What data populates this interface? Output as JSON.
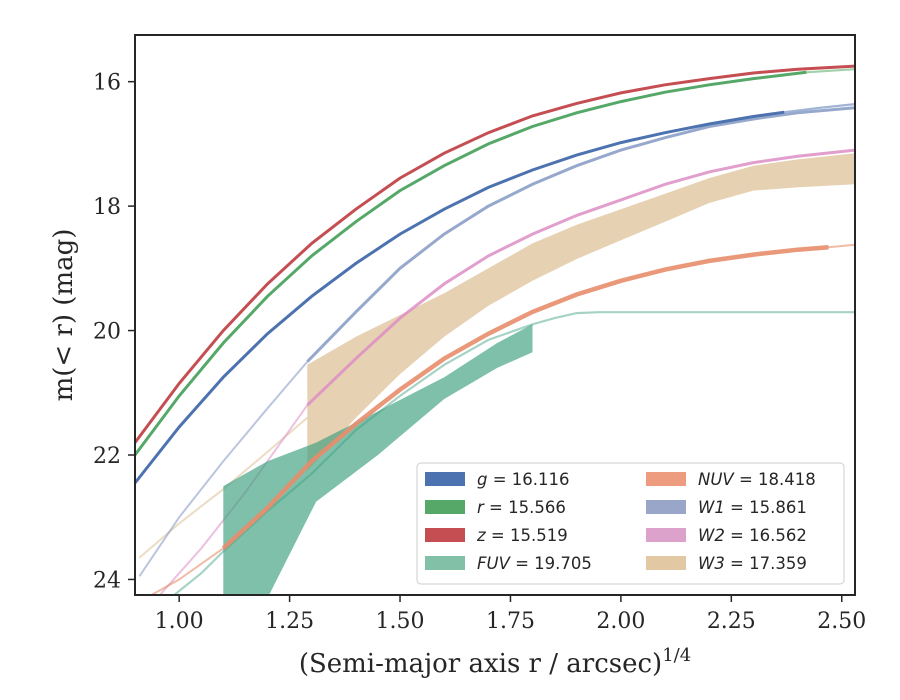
{
  "chart_data": {
    "type": "line",
    "xlabel": "(Semi-major axis r / arcsec)",
    "xlabel_sup": "1/4",
    "ylabel": "m(< r) (mag)",
    "xlim": [
      0.9,
      2.53
    ],
    "ylim": [
      24.25,
      15.25
    ],
    "y_inverted": true,
    "xticks": [
      "1.00",
      "1.25",
      "1.50",
      "1.75",
      "2.00",
      "2.25",
      "2.50"
    ],
    "yticks": [
      "16",
      "18",
      "20",
      "22",
      "24"
    ],
    "grid": false,
    "legend_position": "lower-right",
    "series": [
      {
        "name": "g = 16.116",
        "band": "g",
        "label_value": "16.116",
        "color": "#4c72b0",
        "x": [
          0.9,
          1.0,
          1.1,
          1.2,
          1.3,
          1.4,
          1.5,
          1.6,
          1.7,
          1.8,
          1.9,
          2.0,
          2.1,
          2.2,
          2.3,
          2.37
        ],
        "y": [
          22.45,
          21.55,
          20.75,
          20.05,
          19.45,
          18.92,
          18.45,
          18.05,
          17.7,
          17.42,
          17.18,
          16.98,
          16.82,
          16.68,
          16.56,
          16.49
        ],
        "x_ext": [
          2.37,
          2.45,
          2.53
        ],
        "y_ext": [
          16.49,
          16.42,
          16.36
        ]
      },
      {
        "name": "r = 15.566",
        "band": "r",
        "label_value": "15.566",
        "color": "#55a868",
        "x": [
          0.9,
          1.0,
          1.1,
          1.2,
          1.3,
          1.4,
          1.5,
          1.6,
          1.7,
          1.8,
          1.9,
          2.0,
          2.1,
          2.2,
          2.3,
          2.42
        ],
        "y": [
          22.0,
          21.05,
          20.2,
          19.45,
          18.8,
          18.25,
          17.75,
          17.35,
          17.0,
          16.72,
          16.5,
          16.32,
          16.17,
          16.05,
          15.95,
          15.85
        ],
        "x_ext": [
          2.42,
          2.53
        ],
        "y_ext": [
          15.85,
          15.8
        ]
      },
      {
        "name": "z = 15.519",
        "band": "z",
        "label_value": "15.519",
        "color": "#c44e52",
        "x": [
          0.9,
          1.0,
          1.1,
          1.2,
          1.3,
          1.4,
          1.5,
          1.6,
          1.7,
          1.8,
          1.9,
          2.0,
          2.1,
          2.2,
          2.3,
          2.4,
          2.53
        ],
        "y": [
          21.8,
          20.85,
          20.0,
          19.25,
          18.6,
          18.05,
          17.55,
          17.15,
          16.82,
          16.55,
          16.35,
          16.18,
          16.05,
          15.95,
          15.86,
          15.8,
          15.75
        ]
      },
      {
        "name": "FUV = 19.705",
        "band": "FUV",
        "label_value": "19.705",
        "color": "#3a9e7e",
        "band_x": [
          1.1,
          1.2,
          1.31,
          1.45,
          1.6,
          1.72,
          1.8
        ],
        "band_upper": [
          22.5,
          22.1,
          21.8,
          21.3,
          20.75,
          20.2,
          19.9
        ],
        "band_lower": [
          24.3,
          24.3,
          22.75,
          22.0,
          21.1,
          20.6,
          20.35
        ],
        "line_x": [
          0.98,
          1.05,
          1.1,
          1.2,
          1.3,
          1.4,
          1.5,
          1.6,
          1.7,
          1.8,
          1.85,
          1.9,
          1.95,
          2.0,
          2.2,
          2.53
        ],
        "line_y": [
          24.3,
          23.9,
          23.55,
          22.9,
          22.3,
          21.6,
          21.05,
          20.55,
          20.15,
          19.9,
          19.8,
          19.72,
          19.705,
          19.705,
          19.705,
          19.705
        ]
      },
      {
        "name": "NUV = 18.418",
        "band": "NUV",
        "label_value": "18.418",
        "color": "#e88d6b",
        "x": [
          1.1,
          1.2,
          1.3,
          1.4,
          1.5,
          1.6,
          1.7,
          1.8,
          1.9,
          2.0,
          2.1,
          2.2,
          2.3,
          2.4,
          2.47
        ],
        "y": [
          23.5,
          22.85,
          22.1,
          21.5,
          20.95,
          20.45,
          20.05,
          19.7,
          19.42,
          19.2,
          19.02,
          18.88,
          18.78,
          18.7,
          18.66
        ],
        "x_ext": [
          0.9,
          1.0,
          1.1
        ],
        "y_ext": [
          24.4,
          24.0,
          23.5
        ],
        "x_ext2": [
          2.47,
          2.53
        ],
        "y_ext2": [
          18.66,
          18.62
        ]
      },
      {
        "name": "W1 = 15.861",
        "band": "W1",
        "label_value": "15.861",
        "color": "#8c9fc8",
        "x": [
          1.29,
          1.4,
          1.5,
          1.6,
          1.7,
          1.8,
          1.9,
          2.0,
          2.1,
          2.2,
          2.3,
          2.4,
          2.53
        ],
        "y": [
          20.5,
          19.7,
          19.0,
          18.45,
          18.0,
          17.65,
          17.35,
          17.1,
          16.9,
          16.72,
          16.6,
          16.5,
          16.42
        ],
        "x_ext": [
          0.91,
          1.0,
          1.1,
          1.2,
          1.29
        ],
        "y_ext": [
          23.95,
          23.0,
          22.1,
          21.25,
          20.5
        ]
      },
      {
        "name": "W2 = 16.562",
        "band": "W2",
        "label_value": "16.562",
        "color": "#dd8ec4",
        "x": [
          1.29,
          1.4,
          1.5,
          1.6,
          1.7,
          1.8,
          1.9,
          2.0,
          2.1,
          2.2,
          2.3,
          2.4,
          2.53
        ],
        "y": [
          21.2,
          20.45,
          19.8,
          19.25,
          18.8,
          18.45,
          18.15,
          17.9,
          17.65,
          17.45,
          17.3,
          17.2,
          17.1
        ],
        "x_ext": [
          0.95,
          1.05,
          1.15,
          1.29
        ],
        "y_ext": [
          24.3,
          23.5,
          22.6,
          21.2
        ]
      },
      {
        "name": "W3 = 17.359",
        "band": "W3",
        "label_value": "17.359",
        "color": "#dcbf96",
        "band_x": [
          1.29,
          1.4,
          1.5,
          1.6,
          1.7,
          1.8,
          1.9,
          2.0,
          2.1,
          2.2,
          2.3,
          2.4,
          2.53
        ],
        "band_upper": [
          20.55,
          20.1,
          19.75,
          19.4,
          19.0,
          18.6,
          18.3,
          18.05,
          17.8,
          17.55,
          17.35,
          17.25,
          17.15
        ],
        "band_lower": [
          22.25,
          21.4,
          20.7,
          20.1,
          19.6,
          19.2,
          18.85,
          18.55,
          18.25,
          17.95,
          17.75,
          17.7,
          17.65
        ],
        "x_ext": [
          0.91,
          1.0,
          1.1,
          1.2,
          1.29
        ],
        "y_ext": [
          23.65,
          23.1,
          22.55,
          21.95,
          21.4
        ]
      }
    ],
    "legend": {
      "columns": [
        [
          {
            "label": "g = 16.116",
            "band": "g",
            "value": "= 16.116",
            "color": "#4c72b0"
          },
          {
            "label": "r = 15.566",
            "band": "r",
            "value": "= 15.566",
            "color": "#55a868"
          },
          {
            "label": "z = 15.519",
            "band": "z",
            "value": "= 15.519",
            "color": "#c44e52"
          },
          {
            "label": "FUV = 19.705",
            "band": "FUV",
            "value": "= 19.705",
            "color": "#82c0a8"
          }
        ],
        [
          {
            "label": "NUV = 18.418",
            "band": "NUV",
            "value": "= 18.418",
            "color": "#ee9c7f"
          },
          {
            "label": "W1 = 15.861",
            "band": "W1",
            "value": "= 15.861",
            "color": "#99a6c9"
          },
          {
            "label": "W2 = 16.562",
            "band": "W2",
            "value": "= 16.562",
            "color": "#dda2cb"
          },
          {
            "label": "W3 = 17.359",
            "band": "W3",
            "value": "= 17.359",
            "color": "#e3c8a4"
          }
        ]
      ]
    }
  }
}
